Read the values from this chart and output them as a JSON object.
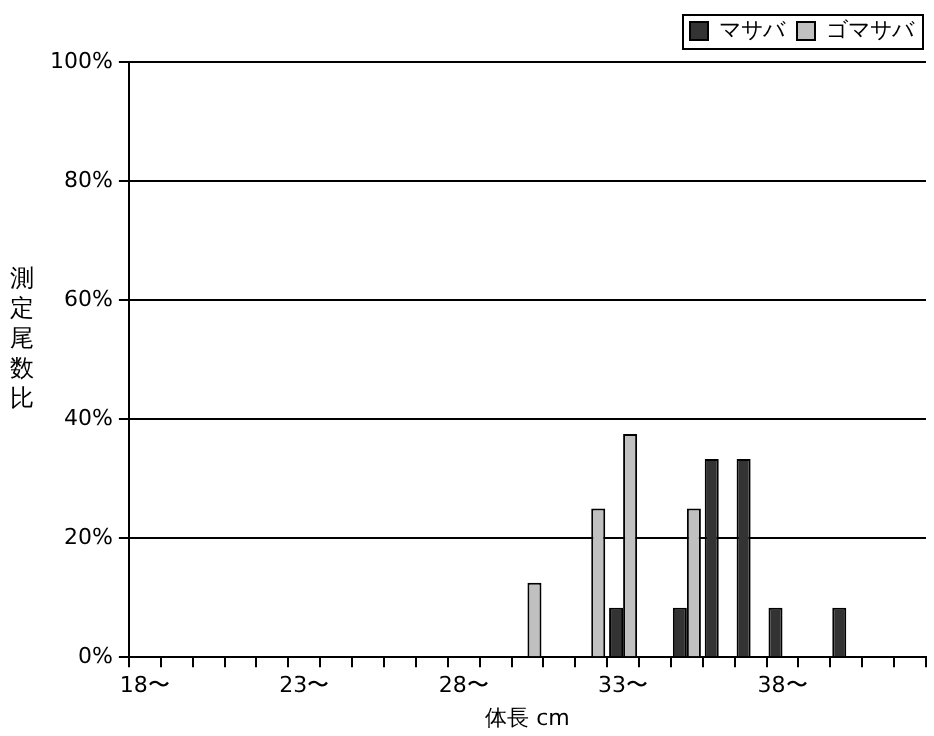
{
  "chart_data": {
    "type": "bar",
    "xlabel": "体長 cm",
    "ylabel": "測定尾数比",
    "categories": [
      "18〜",
      null,
      null,
      null,
      null,
      "23〜",
      null,
      null,
      null,
      null,
      "28〜",
      null,
      null,
      null,
      null,
      "33〜",
      null,
      null,
      null,
      null,
      "38〜",
      null,
      null,
      null,
      null
    ],
    "series": [
      {
        "name": "マサバ",
        "color": "#333333",
        "values": [
          0,
          0,
          0,
          0,
          0,
          0,
          0,
          0,
          0,
          0,
          0,
          0,
          0,
          0,
          0,
          8.3,
          0,
          8.3,
          33.3,
          33.3,
          8.3,
          0,
          8.3,
          0,
          0
        ]
      },
      {
        "name": "ゴマサバ",
        "color": "#c0c0c0",
        "values": [
          0,
          0,
          0,
          0,
          0,
          0,
          0,
          0,
          0,
          0,
          0,
          0,
          12.5,
          0,
          25,
          37.5,
          0,
          25,
          0,
          0,
          0,
          0,
          0,
          0,
          0
        ]
      }
    ],
    "ylim": [
      0,
      100
    ],
    "yticks": [
      {
        "value": 0,
        "label": "0%"
      },
      {
        "value": 20,
        "label": "20%"
      },
      {
        "value": 40,
        "label": "40%"
      },
      {
        "value": 60,
        "label": "60%"
      },
      {
        "value": 80,
        "label": "80%"
      },
      {
        "value": 100,
        "label": "100%"
      }
    ],
    "grid": "y",
    "legend": "top right"
  }
}
